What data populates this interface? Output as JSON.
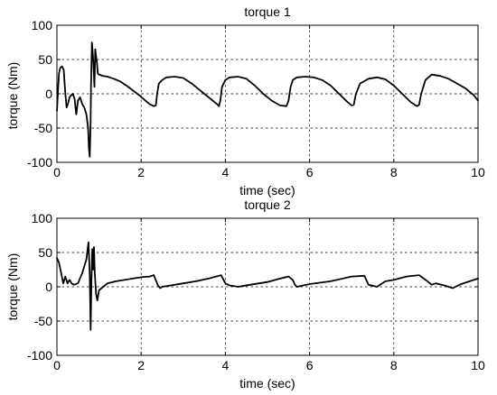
{
  "chart_data": [
    {
      "type": "line",
      "title": "torque 1",
      "xlabel": "time (sec)",
      "ylabel": "torque (Nm)",
      "xlim": [
        0,
        10
      ],
      "ylim": [
        -100,
        100
      ],
      "xticks": [
        0,
        2,
        4,
        6,
        8,
        10
      ],
      "yticks": [
        -100,
        -50,
        0,
        50,
        100
      ],
      "grid": true,
      "series": [
        {
          "x": [
            0.0,
            0.03,
            0.05,
            0.08,
            0.12,
            0.16,
            0.2,
            0.23,
            0.26,
            0.3,
            0.34,
            0.38,
            0.42,
            0.46,
            0.5,
            0.55,
            0.6,
            0.65,
            0.7,
            0.74,
            0.76,
            0.78,
            0.8,
            0.81,
            0.83,
            0.85,
            0.87,
            0.89,
            0.91,
            0.93,
            0.95,
            0.97,
            1.0,
            1.05,
            1.1,
            1.2,
            1.35,
            1.5,
            1.65,
            1.8,
            1.95,
            2.1,
            2.2,
            2.3,
            2.35,
            2.38,
            2.42,
            2.5,
            2.6,
            2.8,
            3.0,
            3.2,
            3.4,
            3.6,
            3.8,
            3.85,
            3.88,
            3.92,
            4.0,
            4.1,
            4.3,
            4.5,
            4.7,
            4.9,
            5.1,
            5.3,
            5.45,
            5.5,
            5.55,
            5.6,
            5.7,
            5.9,
            6.1,
            6.3,
            6.5,
            6.7,
            6.9,
            7.0,
            7.05,
            7.1,
            7.2,
            7.4,
            7.6,
            7.8,
            8.0,
            8.2,
            8.4,
            8.55,
            8.6,
            8.65,
            8.75,
            8.9,
            9.1,
            9.3,
            9.5,
            9.7,
            9.9,
            10.0
          ],
          "y": [
            -25,
            10,
            30,
            38,
            40,
            35,
            0,
            -20,
            -15,
            -5,
            -2,
            0,
            -8,
            -30,
            -10,
            -5,
            -15,
            -20,
            -30,
            -50,
            -80,
            -92,
            -40,
            10,
            75,
            60,
            40,
            10,
            65,
            55,
            45,
            30,
            28,
            27,
            26,
            25,
            22,
            18,
            12,
            5,
            -2,
            -10,
            -15,
            -18,
            -17,
            0,
            15,
            20,
            24,
            25,
            23,
            15,
            5,
            -5,
            -15,
            -18,
            -10,
            10,
            20,
            24,
            25,
            22,
            12,
            0,
            -10,
            -17,
            -18,
            -10,
            10,
            20,
            24,
            25,
            24,
            20,
            12,
            0,
            -12,
            -17,
            -16,
            0,
            15,
            22,
            24,
            21,
            12,
            0,
            -12,
            -18,
            -16,
            0,
            20,
            28,
            26,
            22,
            15,
            8,
            -2,
            -10
          ]
        }
      ]
    },
    {
      "type": "line",
      "title": "torque 2",
      "xlabel": "time (sec)",
      "ylabel": "torque (Nm)",
      "xlim": [
        0,
        10
      ],
      "ylim": [
        -100,
        100
      ],
      "xticks": [
        0,
        2,
        4,
        6,
        8,
        10
      ],
      "yticks": [
        -100,
        -50,
        0,
        50,
        100
      ],
      "grid": true,
      "series": [
        {
          "x": [
            0.0,
            0.05,
            0.1,
            0.15,
            0.2,
            0.25,
            0.3,
            0.35,
            0.4,
            0.5,
            0.6,
            0.7,
            0.75,
            0.78,
            0.8,
            0.82,
            0.84,
            0.86,
            0.88,
            0.9,
            0.93,
            0.96,
            1.0,
            1.1,
            1.2,
            1.4,
            1.6,
            1.8,
            2.0,
            2.2,
            2.3,
            2.4,
            2.45,
            2.5,
            2.7,
            3.0,
            3.3,
            3.6,
            3.9,
            4.0,
            4.1,
            4.3,
            4.6,
            5.0,
            5.3,
            5.5,
            5.6,
            5.65,
            5.7,
            6.0,
            6.5,
            7.0,
            7.3,
            7.4,
            7.6,
            7.8,
            8.0,
            8.3,
            8.6,
            8.8,
            8.9,
            9.0,
            9.2,
            9.4,
            9.6,
            9.8,
            10.0
          ],
          "y": [
            42,
            35,
            20,
            5,
            15,
            5,
            10,
            5,
            3,
            5,
            20,
            40,
            65,
            20,
            -63,
            10,
            55,
            25,
            58,
            20,
            -10,
            -20,
            -5,
            0,
            5,
            8,
            10,
            12,
            14,
            15,
            17,
            2,
            -2,
            0,
            2,
            5,
            8,
            12,
            17,
            5,
            2,
            0,
            3,
            7,
            12,
            15,
            10,
            3,
            0,
            4,
            8,
            15,
            16,
            3,
            0,
            8,
            10,
            15,
            17,
            8,
            3,
            5,
            2,
            -2,
            4,
            8,
            12
          ]
        }
      ]
    }
  ]
}
